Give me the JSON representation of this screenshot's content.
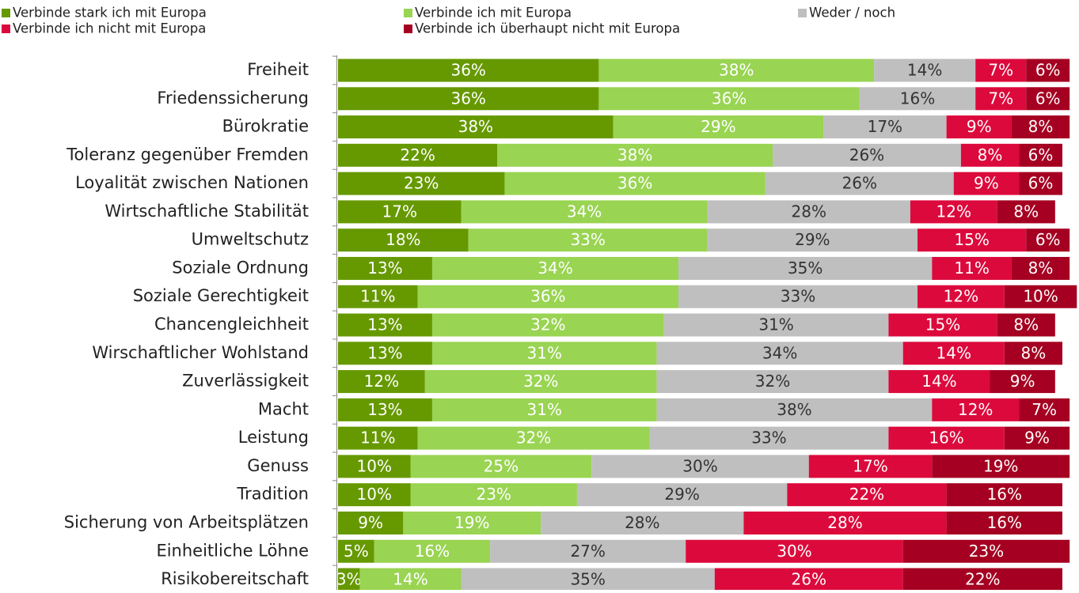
{
  "chart_data": {
    "type": "stacked-bar-horizontal",
    "categories": [
      "Freiheit",
      "Friedenssicherung",
      "Bürokratie",
      "Toleranz gegenüber Fremden",
      "Loyalität zwischen Nationen",
      "Wirtschaftliche Stabilität",
      "Umweltschutz",
      "Soziale Ordnung",
      "Soziale Gerechtigkeit",
      "Chancengleichheit",
      "Wirschaftlicher Wohlstand",
      "Zuverlässigkeit",
      "Macht",
      "Leistung",
      "Genuss",
      "Tradition",
      "Sicherung von Arbeitsplätzen",
      "Einheitliche Löhne",
      "Risikobereitschaft"
    ],
    "series": [
      {
        "name": "Verbinde stark ich mit Europa",
        "color": "#669900",
        "label_color": "#ffffff",
        "values": [
          36,
          36,
          38,
          22,
          23,
          17,
          18,
          13,
          11,
          13,
          13,
          12,
          13,
          11,
          10,
          10,
          9,
          5,
          3
        ],
        "value_labels": [
          "36%",
          "36%",
          "38%",
          "22%",
          "23%",
          "17%",
          "18%",
          "13%",
          "11%",
          "13%",
          "13%",
          "12%",
          "13%",
          "11%",
          "10%",
          "10%",
          "9%",
          "5%",
          "3%"
        ]
      },
      {
        "name": "Verbinde ich mit Europa",
        "color": "#99d452",
        "label_color": "#ffffff",
        "values": [
          38,
          36,
          29,
          38,
          36,
          34,
          33,
          34,
          36,
          32,
          31,
          32,
          31,
          32,
          25,
          23,
          19,
          16,
          14
        ],
        "value_labels": [
          "38%",
          "36%",
          "29%",
          "38%",
          "36%",
          "34%",
          "33%",
          "34%",
          "36%",
          "32%",
          "31%",
          "32%",
          "31%",
          "32%",
          "25%",
          "23%",
          "19%",
          "16%",
          "14%"
        ]
      },
      {
        "name": "Weder / noch",
        "color": "#bfbfbf",
        "label_color": "#333333",
        "values": [
          14,
          16,
          17,
          26,
          26,
          28,
          29,
          35,
          33,
          31,
          34,
          32,
          38,
          33,
          30,
          29,
          28,
          27,
          35
        ],
        "value_labels": [
          "14%",
          "16%",
          "17%",
          "26%",
          "26%",
          "28%",
          "29%",
          "35%",
          "33%",
          "31%",
          "34%",
          "32%",
          "38%",
          "33%",
          "30%",
          "29%",
          "28%",
          "27%",
          "35%"
        ]
      },
      {
        "name": "Verbinde ich nicht mit Europa",
        "color": "#dc0a3c",
        "label_color": "#ffffff",
        "values": [
          7,
          7,
          9,
          8,
          9,
          12,
          15,
          11,
          12,
          15,
          14,
          14,
          12,
          16,
          17,
          22,
          28,
          30,
          26
        ],
        "value_labels": [
          "7%",
          "7%",
          "9%",
          "8%",
          "9%",
          "12%",
          "15%",
          "11%",
          "12%",
          "15%",
          "14%",
          "14%",
          "12%",
          "16%",
          "17%",
          "22%",
          "28%",
          "30%",
          "26%"
        ]
      },
      {
        "name": "Verbinde ich überhaupt nicht mit Europa",
        "color": "#a50021",
        "label_color": "#ffffff",
        "values": [
          6,
          6,
          8,
          6,
          6,
          8,
          6,
          8,
          10,
          8,
          8,
          9,
          7,
          9,
          19,
          16,
          16,
          23,
          22
        ],
        "value_labels": [
          "6%",
          "6%",
          "8%",
          "6%",
          "6%",
          "8%",
          "6%",
          "8%",
          "10%",
          "8%",
          "8%",
          "9%",
          "7%",
          "9%",
          "19%",
          "16%",
          "16%",
          "23%",
          "22%"
        ]
      }
    ]
  }
}
